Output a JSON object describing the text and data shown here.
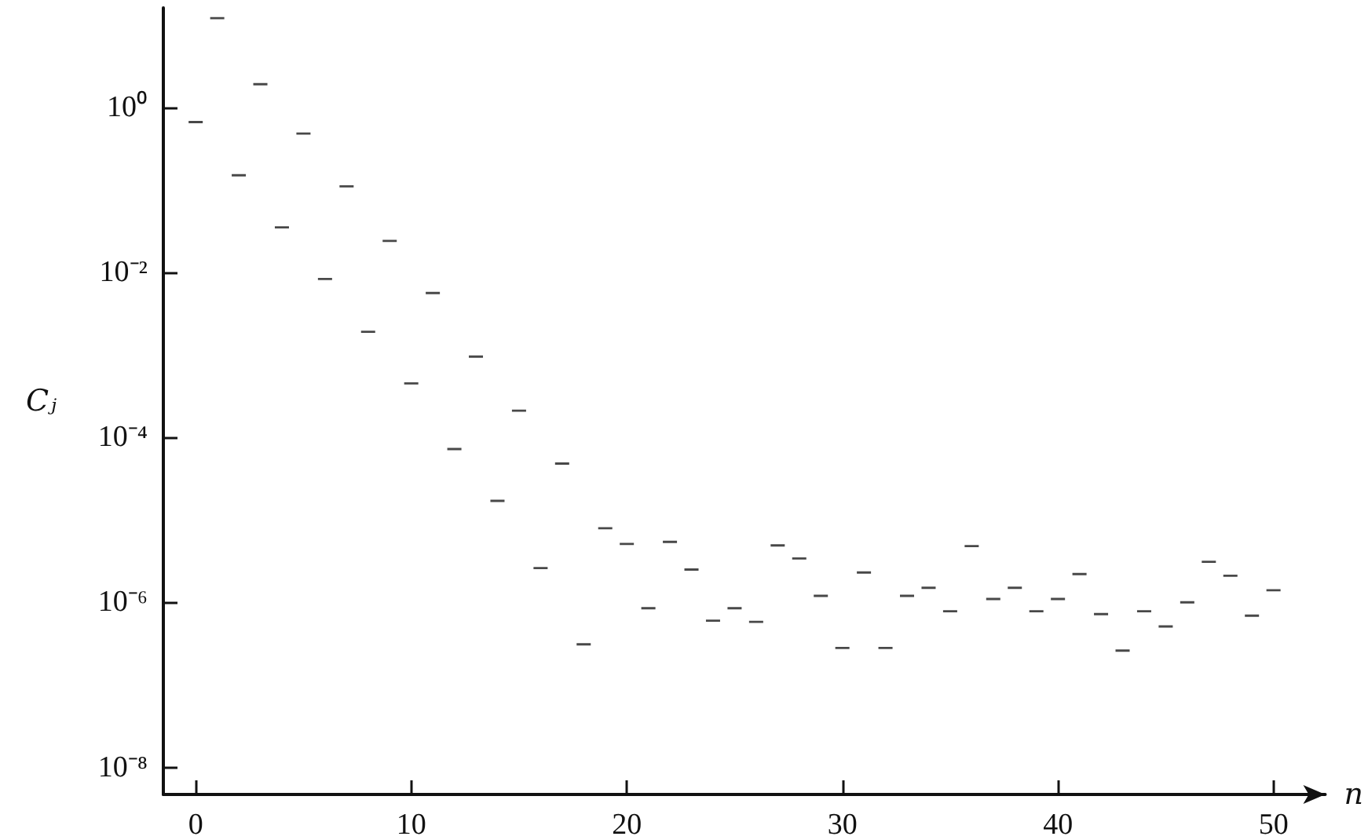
{
  "chart_data": {
    "type": "scatter",
    "xlabel": "n",
    "ylabel": "Cⱼ",
    "x": [
      0,
      1,
      2,
      3,
      4,
      5,
      6,
      7,
      8,
      9,
      10,
      11,
      12,
      13,
      14,
      15,
      16,
      17,
      18,
      19,
      20,
      21,
      22,
      23,
      24,
      25,
      26,
      27,
      28,
      29,
      30,
      31,
      32,
      33,
      34,
      35,
      36,
      37,
      38,
      39,
      40,
      41,
      42,
      43,
      44,
      45,
      46,
      47,
      48,
      49,
      50
    ],
    "values": [
      0.66,
      12,
      0.15,
      1.9,
      0.035,
      0.48,
      0.0083,
      0.11,
      0.0019,
      0.024,
      0.00045,
      0.0056,
      7.2e-05,
      0.00095,
      1.7e-05,
      0.00021,
      2.6e-06,
      4.8e-05,
      3.1e-07,
      7.9e-06,
      5.1e-06,
      8.5e-07,
      5.4e-06,
      2.5e-06,
      6e-07,
      8.5e-07,
      5.8e-07,
      4.9e-06,
      3.4e-06,
      1.2e-06,
      2.8e-07,
      2.3e-06,
      2.8e-07,
      1.2e-06,
      1.5e-06,
      7.8e-07,
      4.8e-06,
      1.1e-06,
      1.5e-06,
      7.8e-07,
      1.1e-06,
      2.2e-06,
      7.2e-07,
      2.6e-07,
      7.8e-07,
      5.1e-07,
      1e-06,
      3.1e-06,
      2.1e-06,
      6.9e-07,
      1.4e-06
    ],
    "color": "#1a1a1a",
    "log": "y",
    "xlim": [
      -1.5,
      52.4
    ],
    "xticks": [
      0,
      10,
      20,
      30,
      40,
      50
    ],
    "ylim": [
      4.7e-09,
      16
    ],
    "yticks": [
      {
        "value": 1,
        "label": "10⁰"
      },
      {
        "value": 0.01,
        "label": "10⁻²"
      },
      {
        "value": 0.0001,
        "label": "10⁻⁴"
      },
      {
        "value": 1e-06,
        "label": "10⁻⁶"
      },
      {
        "value": 1e-08,
        "label": "10⁻⁸"
      }
    ],
    "grid": false
  }
}
